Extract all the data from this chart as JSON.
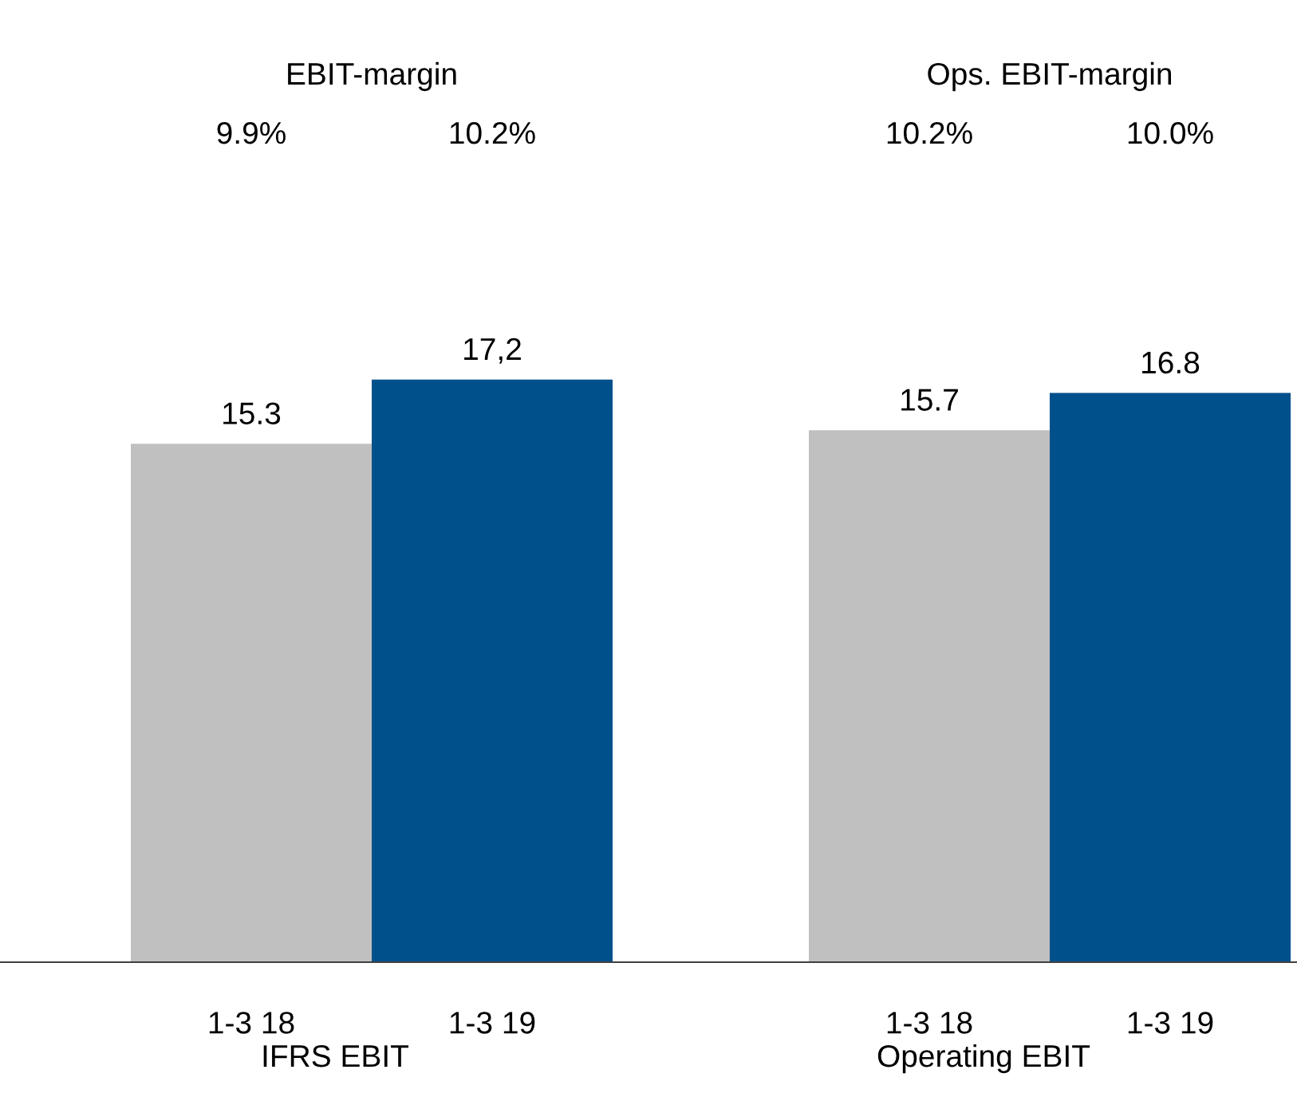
{
  "chart_data": [
    {
      "type": "bar",
      "title": "EBIT-margin",
      "annotations": [
        "9.9%",
        "10.2%"
      ],
      "categories": [
        "1-3 18",
        "1-3 19"
      ],
      "values": [
        15.3,
        17.2
      ],
      "colors": [
        "#c0c0c0",
        "#00508c"
      ],
      "value_labels": [
        "15.3",
        "17,2"
      ],
      "xlabel": "IFRS EBIT"
    },
    {
      "type": "bar",
      "title": "Ops. EBIT-margin",
      "annotations": [
        "10.2%",
        "10.0%"
      ],
      "categories": [
        "1-3 18",
        "1-3 19"
      ],
      "values": [
        15.7,
        16.8
      ],
      "colors": [
        "#c0c0c0",
        "#00508c"
      ],
      "value_labels": [
        "15.7",
        "16.8"
      ],
      "xlabel": "Operating EBIT"
    }
  ]
}
